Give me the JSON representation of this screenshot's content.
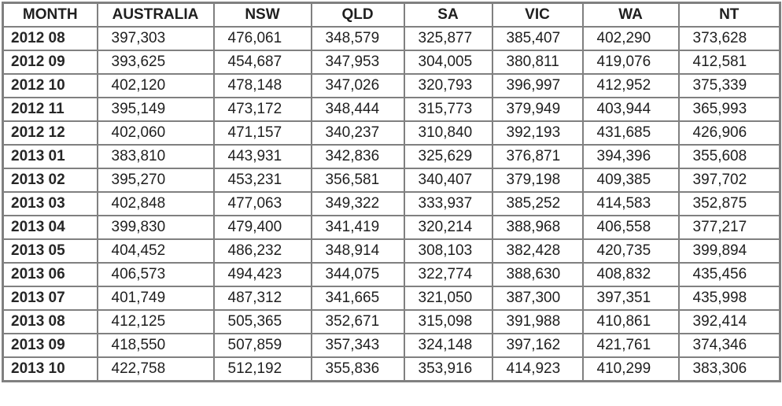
{
  "table": {
    "columns": [
      "MONTH",
      "AUSTRALIA",
      "NSW",
      "QLD",
      "SA",
      "VIC",
      "WA",
      "NT"
    ],
    "rows": [
      [
        "2012 08",
        "397,303",
        "476,061",
        "348,579",
        "325,877",
        "385,407",
        "402,290",
        "373,628"
      ],
      [
        "2012 09",
        "393,625",
        "454,687",
        "347,953",
        "304,005",
        "380,811",
        "419,076",
        "412,581"
      ],
      [
        "2012 10",
        "402,120",
        "478,148",
        "347,026",
        "320,793",
        "396,997",
        "412,952",
        "375,339"
      ],
      [
        "2012 11",
        "395,149",
        "473,172",
        "348,444",
        "315,773",
        "379,949",
        "403,944",
        "365,993"
      ],
      [
        "2012 12",
        "402,060",
        "471,157",
        "340,237",
        "310,840",
        "392,193",
        "431,685",
        "426,906"
      ],
      [
        "2013 01",
        "383,810",
        "443,931",
        "342,836",
        "325,629",
        "376,871",
        "394,396",
        "355,608"
      ],
      [
        "2013 02",
        "395,270",
        "453,231",
        "356,581",
        "340,407",
        "379,198",
        "409,385",
        "397,702"
      ],
      [
        "2013 03",
        "402,848",
        "477,063",
        "349,322",
        "333,937",
        "385,252",
        "414,583",
        "352,875"
      ],
      [
        "2013 04",
        "399,830",
        "479,400",
        "341,419",
        "320,214",
        "388,968",
        "406,558",
        "377,217"
      ],
      [
        "2013 05",
        "404,452",
        "486,232",
        "348,914",
        "308,103",
        "382,428",
        "420,735",
        "399,894"
      ],
      [
        "2013 06",
        "406,573",
        "494,423",
        "344,075",
        "322,774",
        "388,630",
        "408,832",
        "435,456"
      ],
      [
        "2013 07",
        "401,749",
        "487,312",
        "341,665",
        "321,050",
        "387,300",
        "397,351",
        "435,998"
      ],
      [
        "2013 08",
        "412,125",
        "505,365",
        "352,671",
        "315,098",
        "391,988",
        "410,861",
        "392,414"
      ],
      [
        "2013 09",
        "418,550",
        "507,859",
        "357,343",
        "324,148",
        "397,162",
        "421,761",
        "374,346"
      ],
      [
        "2013 10",
        "422,758",
        "512,192",
        "355,836",
        "353,916",
        "414,923",
        "410,299",
        "383,306"
      ]
    ],
    "border_color": "#808080",
    "header_text_color": "#1f1f1f",
    "cell_text_color": "#1f1f1f",
    "background_color": "#ffffff"
  },
  "chart_data": {
    "type": "table",
    "title": "",
    "categories": [
      "2012 08",
      "2012 09",
      "2012 10",
      "2012 11",
      "2012 12",
      "2013 01",
      "2013 02",
      "2013 03",
      "2013 04",
      "2013 05",
      "2013 06",
      "2013 07",
      "2013 08",
      "2013 09",
      "2013 10"
    ],
    "series": [
      {
        "name": "AUSTRALIA",
        "values": [
          397303,
          393625,
          402120,
          395149,
          402060,
          383810,
          395270,
          402848,
          399830,
          404452,
          406573,
          401749,
          412125,
          418550,
          422758
        ]
      },
      {
        "name": "NSW",
        "values": [
          476061,
          454687,
          478148,
          473172,
          471157,
          443931,
          453231,
          477063,
          479400,
          486232,
          494423,
          487312,
          505365,
          507859,
          512192
        ]
      },
      {
        "name": "QLD",
        "values": [
          348579,
          347953,
          347026,
          348444,
          340237,
          342836,
          356581,
          349322,
          341419,
          348914,
          344075,
          341665,
          352671,
          357343,
          355836
        ]
      },
      {
        "name": "SA",
        "values": [
          325877,
          304005,
          320793,
          315773,
          310840,
          325629,
          340407,
          333937,
          320214,
          308103,
          322774,
          321050,
          315098,
          324148,
          353916
        ]
      },
      {
        "name": "VIC",
        "values": [
          385407,
          380811,
          396997,
          379949,
          392193,
          376871,
          379198,
          385252,
          388968,
          382428,
          388630,
          387300,
          391988,
          397162,
          414923
        ]
      },
      {
        "name": "WA",
        "values": [
          402290,
          419076,
          412952,
          403944,
          431685,
          394396,
          409385,
          414583,
          406558,
          420735,
          408832,
          397351,
          410861,
          421761,
          410299
        ]
      },
      {
        "name": "NT",
        "values": [
          373628,
          412581,
          375339,
          365993,
          426906,
          355608,
          397702,
          352875,
          377217,
          399894,
          435456,
          435998,
          392414,
          374346,
          383306
        ]
      }
    ],
    "first_column_label": "MONTH",
    "grid": true,
    "legend_position": "none"
  }
}
